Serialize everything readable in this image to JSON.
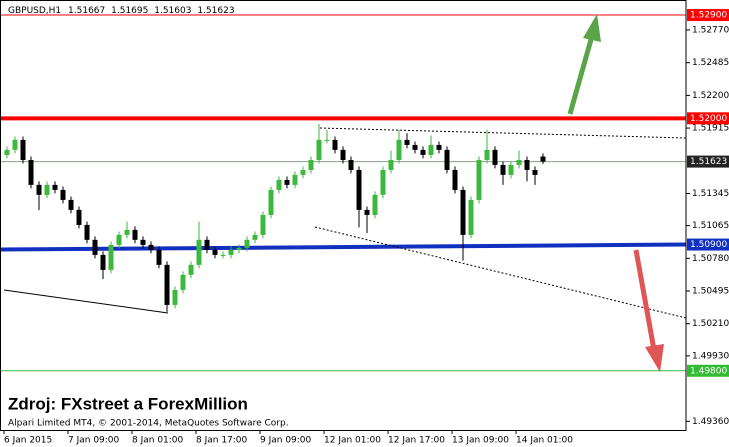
{
  "chart_data": {
    "type": "candlestick",
    "symbol": "GBPUSD,H1",
    "source": "Zdroj: FXstreet a ForexMillion",
    "copyright": "Alpari Limited MT4, © 2001-2014, MetaQuotes Software Corp.",
    "ylim": [
      1.49284,
      1.53031
    ],
    "yticks": [
      {
        "value": 1.5277,
        "label": "1.52770"
      },
      1.52485,
      {
        "value": 1.522,
        "label": "1.52200"
      },
      1.51915,
      1.51345,
      1.51065,
      {
        "value": 1.5078,
        "label": "1.50780"
      },
      1.50495,
      {
        "value": 1.5021,
        "label": "1.50210"
      },
      {
        "value": 1.4993,
        "label": "1.49930"
      },
      {
        "value": 1.4936,
        "label": "1.49360"
      }
    ],
    "xlabels": [
      "6 Jan 2015",
      "7 Jan 09:00",
      "8 Jan 01:00",
      "8 Jan 17:00",
      "9 Jan 09:00",
      "12 Jan 01:00",
      "12 Jan 17:00",
      "13 Jan 09:00",
      "14 Jan 01:00"
    ],
    "up_color": "#3cb83c",
    "down_color": "#000000",
    "levels": [
      {
        "value": 1.529,
        "label": "1.52900",
        "color": "#ff0000",
        "width": 1
      },
      {
        "value": 1.52,
        "label": "1.52000",
        "color": "#ff0000",
        "width": 4
      },
      {
        "value": 1.509,
        "label": "1.50900",
        "color": "#1030c0",
        "width": 4
      },
      {
        "value": 1.498,
        "label": "1.49800",
        "color": "#33bb33",
        "width": 1
      }
    ],
    "candles": [
      [
        1.5168,
        1.51755,
        1.5165,
        1.51725
      ],
      [
        1.51725,
        1.51842,
        1.51695,
        1.51812
      ],
      [
        1.51812,
        1.51842,
        1.51607,
        1.51637
      ],
      [
        1.51637,
        1.51667,
        1.5139,
        1.5142
      ],
      [
        1.5142,
        1.5145,
        1.512,
        1.51333
      ],
      [
        1.51333,
        1.5145,
        1.51303,
        1.5142
      ],
      [
        1.5142,
        1.5145,
        1.51346,
        1.51376
      ],
      [
        1.51376,
        1.51406,
        1.51259,
        1.51289
      ],
      [
        1.51289,
        1.51319,
        1.51172,
        1.51202
      ],
      [
        1.51202,
        1.51232,
        1.51041,
        1.51071
      ],
      [
        1.51071,
        1.51101,
        1.50911,
        1.50941
      ],
      [
        1.50941,
        1.50971,
        1.5078,
        1.5081
      ],
      [
        1.5081,
        1.5084,
        1.506,
        1.50679
      ],
      [
        1.50679,
        1.50927,
        1.50649,
        1.50897
      ],
      [
        1.50897,
        1.51014,
        1.50867,
        1.50984
      ],
      [
        1.50984,
        1.511,
        1.50954,
        1.51028
      ],
      [
        1.51028,
        1.51058,
        1.50911,
        1.50941
      ],
      [
        1.50941,
        1.50971,
        1.50867,
        1.50897
      ],
      [
        1.50897,
        1.50927,
        1.50824,
        1.50854
      ],
      [
        1.50854,
        1.50884,
        1.50693,
        1.50723
      ],
      [
        1.50723,
        1.50753,
        1.50313,
        1.50374
      ],
      [
        1.50374,
        1.50535,
        1.50344,
        1.50505
      ],
      [
        1.50505,
        1.50666,
        1.50475,
        1.50636
      ],
      [
        1.50636,
        1.50753,
        1.50606,
        1.50723
      ],
      [
        1.50723,
        1.511,
        1.50693,
        1.50941
      ],
      [
        1.50941,
        1.50971,
        1.50824,
        1.50854
      ],
      [
        1.50854,
        1.50884,
        1.5078,
        1.5081
      ],
      [
        1.5081,
        1.5084,
        1.5078,
        1.5081
      ],
      [
        1.5081,
        1.50884,
        1.5078,
        1.50854
      ],
      [
        1.50854,
        1.50901,
        1.50824,
        1.50871
      ],
      [
        1.50871,
        1.50971,
        1.50841,
        1.50941
      ],
      [
        1.50941,
        1.51014,
        1.50911,
        1.50984
      ],
      [
        1.50984,
        1.51188,
        1.50954,
        1.51158
      ],
      [
        1.51158,
        1.51406,
        1.51128,
        1.51376
      ],
      [
        1.51376,
        1.51493,
        1.51346,
        1.51463
      ],
      [
        1.51463,
        1.51493,
        1.5139,
        1.5142
      ],
      [
        1.5142,
        1.51537,
        1.5139,
        1.51507
      ],
      [
        1.51507,
        1.5158,
        1.51477,
        1.5155
      ],
      [
        1.5155,
        1.51667,
        1.5152,
        1.51637
      ],
      [
        1.51637,
        1.5195,
        1.51607,
        1.51812
      ],
      [
        1.51812,
        1.519,
        1.51782,
        1.51812
      ],
      [
        1.51812,
        1.51842,
        1.51695,
        1.51725
      ],
      [
        1.51725,
        1.51755,
        1.51607,
        1.51637
      ],
      [
        1.51637,
        1.51667,
        1.5152,
        1.5155
      ],
      [
        1.5155,
        1.5158,
        1.5105,
        1.51202
      ],
      [
        1.51202,
        1.51232,
        1.51,
        1.51158
      ],
      [
        1.51158,
        1.51363,
        1.51128,
        1.51333
      ],
      [
        1.51333,
        1.5158,
        1.51303,
        1.5155
      ],
      [
        1.5155,
        1.5172,
        1.5152,
        1.51637
      ],
      [
        1.51637,
        1.519,
        1.51607,
        1.51812
      ],
      [
        1.51812,
        1.5187,
        1.51738,
        1.51768
      ],
      [
        1.51768,
        1.51798,
        1.51695,
        1.51725
      ],
      [
        1.51725,
        1.51755,
        1.51651,
        1.51681
      ],
      [
        1.51681,
        1.5185,
        1.51651,
        1.51768
      ],
      [
        1.51768,
        1.51798,
        1.51695,
        1.51725
      ],
      [
        1.51725,
        1.51755,
        1.5152,
        1.5155
      ],
      [
        1.5155,
        1.5158,
        1.51346,
        1.51376
      ],
      [
        1.51376,
        1.51406,
        1.5076,
        1.50984
      ],
      [
        1.50984,
        1.51319,
        1.50954,
        1.51289
      ],
      [
        1.51289,
        1.51667,
        1.51259,
        1.51637
      ],
      [
        1.51637,
        1.519,
        1.51607,
        1.51725
      ],
      [
        1.51725,
        1.51755,
        1.51564,
        1.51594
      ],
      [
        1.51594,
        1.51624,
        1.5142,
        1.51507
      ],
      [
        1.51507,
        1.51624,
        1.51477,
        1.51594
      ],
      [
        1.51594,
        1.5172,
        1.51564,
        1.51637
      ],
      [
        1.51637,
        1.51667,
        1.5145,
        1.5155
      ],
      [
        1.5155,
        1.5158,
        1.5142,
        1.51507
      ],
      [
        1.51667,
        1.51695,
        1.51603,
        1.51623
      ]
    ]
  }
}
